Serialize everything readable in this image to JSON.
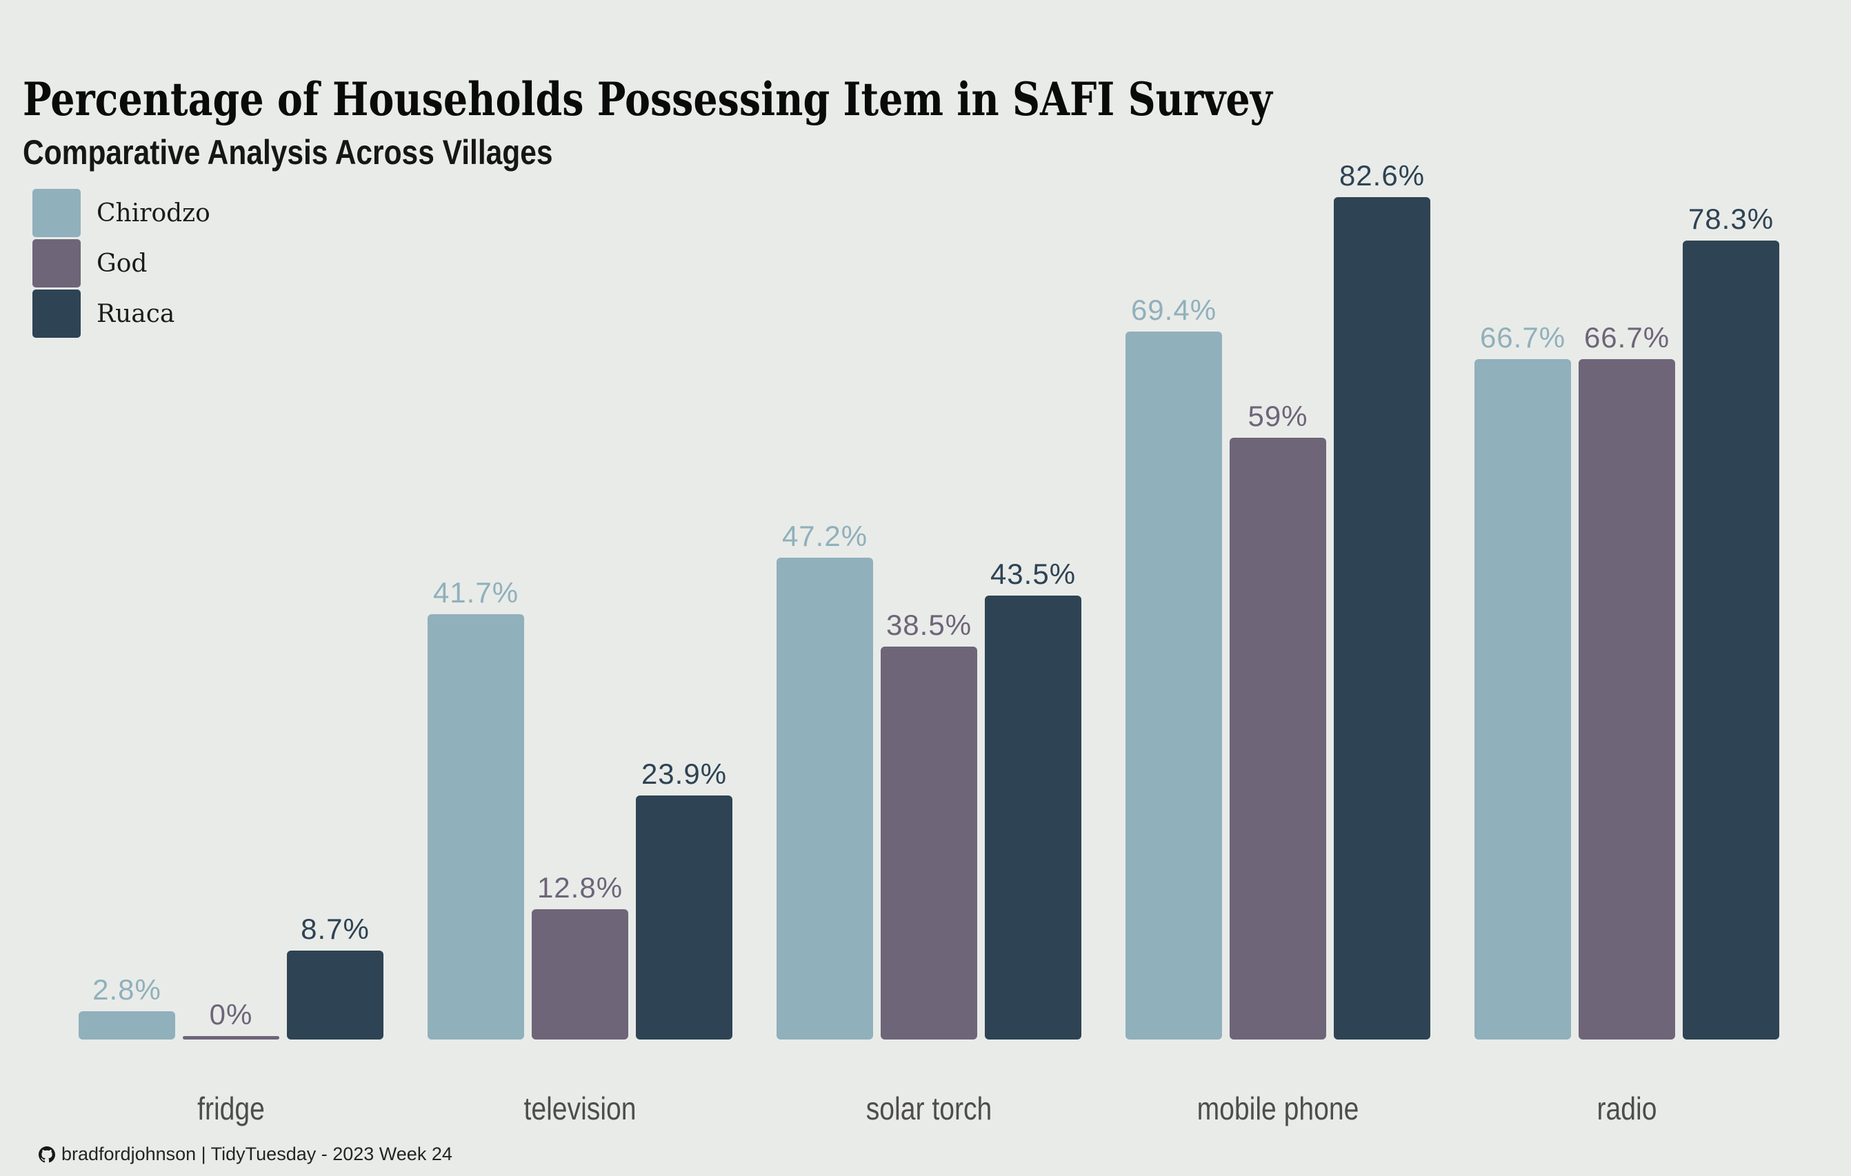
{
  "title": "Percentage of Households Possessing Item in SAFI Survey",
  "subtitle": "Comparative Analysis Across Villages",
  "legend": {
    "items": [
      {
        "label": "Chirodzo",
        "color": "#90B0BC"
      },
      {
        "label": "God",
        "color": "#6E6579"
      },
      {
        "label": "Ruaca",
        "color": "#2E4354"
      }
    ]
  },
  "chart_data": {
    "type": "bar",
    "title": "Percentage of Households Possessing Item in SAFI Survey",
    "subtitle": "Comparative Analysis Across Villages",
    "categories": [
      "fridge",
      "television",
      "solar torch",
      "mobile phone",
      "radio"
    ],
    "series": [
      {
        "name": "Chirodzo",
        "color": "#90B0BC",
        "values": [
          2.8,
          41.7,
          47.2,
          69.4,
          66.7
        ],
        "labels": [
          "2.8%",
          "41.7%",
          "47.2%",
          "69.4%",
          "66.7%"
        ]
      },
      {
        "name": "God",
        "color": "#6E6579",
        "values": [
          0,
          12.8,
          38.5,
          59,
          66.7
        ],
        "labels": [
          "0%",
          "12.8%",
          "38.5%",
          "59%",
          "66.7%"
        ]
      },
      {
        "name": "Ruaca",
        "color": "#2E4354",
        "values": [
          8.7,
          23.9,
          43.5,
          82.6,
          78.3
        ],
        "labels": [
          "8.7%",
          "23.9%",
          "43.5%",
          "82.6%",
          "78.3%"
        ]
      }
    ],
    "xlabel": "",
    "ylabel": "",
    "ylim": [
      0,
      100
    ],
    "grid": false,
    "axes_drawn": false,
    "legend_position": "top-left",
    "value_labels": "above bars, colored to match series"
  },
  "colors": {
    "background": "#E9EBE8",
    "title": "#0A0A0A",
    "subtitle": "#161616",
    "axis_label": "#4D4D4D",
    "legend_label": "#1B1B1B",
    "footer_text": "#242424"
  },
  "footer": {
    "icon": "github-icon",
    "credit": "bradfordjohnson | TidyTuesday - 2023 Week 24"
  }
}
